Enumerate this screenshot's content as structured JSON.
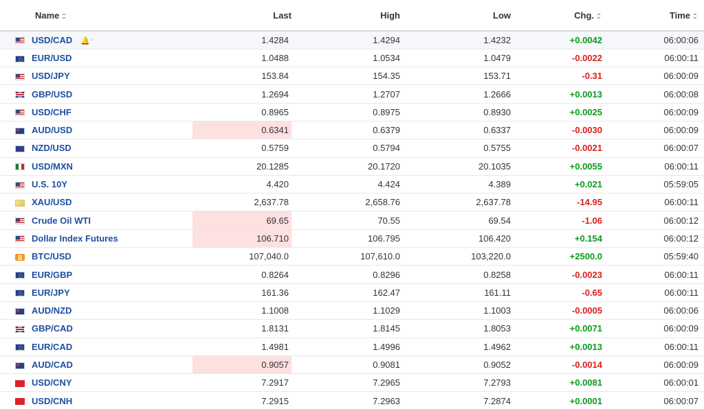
{
  "header": {
    "name": "Name",
    "last": "Last",
    "high": "High",
    "low": "Low",
    "chg": "Chg.",
    "time": "Time"
  },
  "rows": [
    {
      "flag": "us-flag-icon",
      "name": "USD/CAD",
      "last": "1.4284",
      "high": "1.4294",
      "low": "1.4232",
      "chg": "+0.0042",
      "dir": "pos",
      "time": "06:00:06",
      "highlight": false,
      "bell": true
    },
    {
      "flag": "eu-flag-icon",
      "name": "EUR/USD",
      "last": "1.0488",
      "high": "1.0534",
      "low": "1.0479",
      "chg": "-0.0022",
      "dir": "neg",
      "time": "06:00:11",
      "highlight": false
    },
    {
      "flag": "us-flag-icon",
      "name": "USD/JPY",
      "last": "153.84",
      "high": "154.35",
      "low": "153.71",
      "chg": "-0.31",
      "dir": "neg",
      "time": "06:00:09",
      "highlight": false
    },
    {
      "flag": "gb-flag-icon",
      "name": "GBP/USD",
      "last": "1.2694",
      "high": "1.2707",
      "low": "1.2666",
      "chg": "+0.0013",
      "dir": "pos",
      "time": "06:00:08",
      "highlight": false
    },
    {
      "flag": "us-flag-icon",
      "name": "USD/CHF",
      "last": "0.8965",
      "high": "0.8975",
      "low": "0.8930",
      "chg": "+0.0025",
      "dir": "pos",
      "time": "06:00:09",
      "highlight": false
    },
    {
      "flag": "au-flag-icon",
      "name": "AUD/USD",
      "last": "0.6341",
      "high": "0.6379",
      "low": "0.6337",
      "chg": "-0.0030",
      "dir": "neg",
      "time": "06:00:09",
      "highlight": true
    },
    {
      "flag": "nz-flag-icon",
      "name": "NZD/USD",
      "last": "0.5759",
      "high": "0.5794",
      "low": "0.5755",
      "chg": "-0.0021",
      "dir": "neg",
      "time": "06:00:07",
      "highlight": false
    },
    {
      "flag": "mx-flag-icon",
      "name": "USD/MXN",
      "last": "20.1285",
      "high": "20.1720",
      "low": "20.1035",
      "chg": "+0.0055",
      "dir": "pos",
      "time": "06:00:11",
      "highlight": false
    },
    {
      "flag": "us-flag-icon",
      "name": "U.S. 10Y",
      "last": "4.420",
      "high": "4.424",
      "low": "4.389",
      "chg": "+0.021",
      "dir": "pos",
      "time": "05:59:05",
      "highlight": false
    },
    {
      "flag": "gold-icon",
      "name": "XAU/USD",
      "last": "2,637.78",
      "high": "2,658.76",
      "low": "2,637.78",
      "chg": "-14.95",
      "dir": "neg",
      "time": "06:00:11",
      "highlight": false
    },
    {
      "flag": "us-flag-icon",
      "name": "Crude Oil WTI",
      "last": "69.65",
      "high": "70.55",
      "low": "69.54",
      "chg": "-1.06",
      "dir": "neg",
      "time": "06:00:12",
      "highlight": true
    },
    {
      "flag": "us-flag-icon",
      "name": "Dollar Index Futures",
      "last": "106.710",
      "high": "106.795",
      "low": "106.420",
      "chg": "+0.154",
      "dir": "pos",
      "time": "06:00:12",
      "highlight": true
    },
    {
      "flag": "bitcoin-icon",
      "name": "BTC/USD",
      "last": "107,040.0",
      "high": "107,610.0",
      "low": "103,220.0",
      "chg": "+2500.0",
      "dir": "pos",
      "time": "05:59:40",
      "highlight": false
    },
    {
      "flag": "eu-flag-icon",
      "name": "EUR/GBP",
      "last": "0.8264",
      "high": "0.8296",
      "low": "0.8258",
      "chg": "-0.0023",
      "dir": "neg",
      "time": "06:00:11",
      "highlight": false
    },
    {
      "flag": "eu-flag-icon",
      "name": "EUR/JPY",
      "last": "161.36",
      "high": "162.47",
      "low": "161.11",
      "chg": "-0.65",
      "dir": "neg",
      "time": "06:00:11",
      "highlight": false
    },
    {
      "flag": "au-flag-icon",
      "name": "AUD/NZD",
      "last": "1.1008",
      "high": "1.1029",
      "low": "1.1003",
      "chg": "-0.0005",
      "dir": "neg",
      "time": "06:00:06",
      "highlight": false
    },
    {
      "flag": "gb-flag-icon",
      "name": "GBP/CAD",
      "last": "1.8131",
      "high": "1.8145",
      "low": "1.8053",
      "chg": "+0.0071",
      "dir": "pos",
      "time": "06:00:09",
      "highlight": false
    },
    {
      "flag": "eu-flag-icon",
      "name": "EUR/CAD",
      "last": "1.4981",
      "high": "1.4996",
      "low": "1.4962",
      "chg": "+0.0013",
      "dir": "pos",
      "time": "06:00:11",
      "highlight": false
    },
    {
      "flag": "au-flag-icon",
      "name": "AUD/CAD",
      "last": "0.9057",
      "high": "0.9081",
      "low": "0.9052",
      "chg": "-0.0014",
      "dir": "neg",
      "time": "06:00:09",
      "highlight": true
    },
    {
      "flag": "cn-flag-icon",
      "name": "USD/CNY",
      "last": "7.2917",
      "high": "7.2965",
      "low": "7.2793",
      "chg": "+0.0081",
      "dir": "pos",
      "time": "06:00:01",
      "highlight": false
    },
    {
      "flag": "cn-flag-icon",
      "name": "USD/CNH",
      "last": "7.2915",
      "high": "7.2963",
      "low": "7.2874",
      "chg": "+0.0001",
      "dir": "pos",
      "time": "06:00:07",
      "highlight": false
    }
  ],
  "colors": {
    "positive": "#0a9a1f",
    "negative": "#d91e1e",
    "link": "#1e4fa0",
    "highlight": "#fde0e0"
  }
}
